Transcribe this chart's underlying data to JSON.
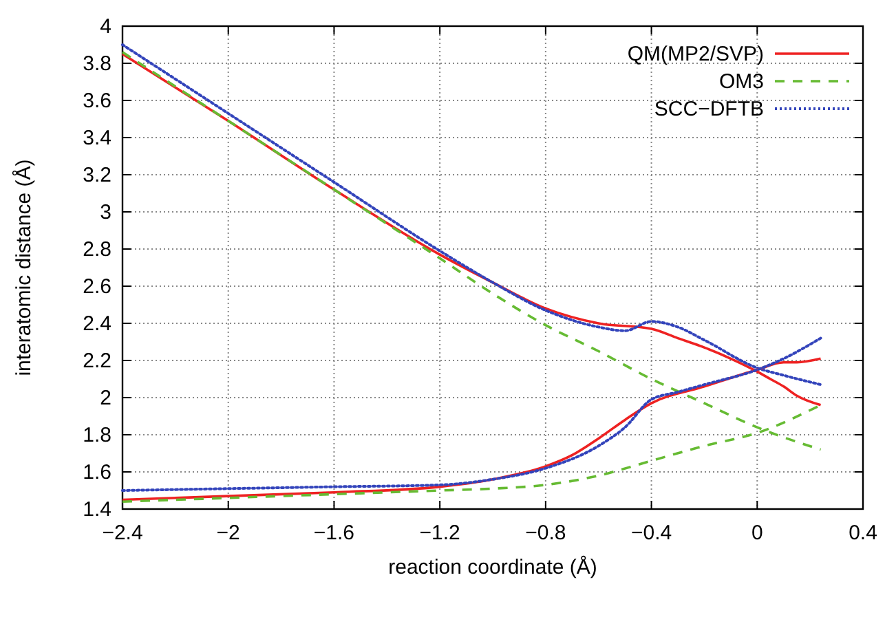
{
  "chart_data": {
    "type": "line",
    "xlabel": "reaction coordinate (Å)",
    "ylabel": "interatomic distance (Å)",
    "xlim": [
      -2.4,
      0.4
    ],
    "xticks": [
      {
        "value": -2.4,
        "label": "−2.4"
      },
      {
        "value": -2,
        "label": "−2"
      },
      {
        "value": -1.6,
        "label": "−1.6"
      },
      {
        "value": -1.2,
        "label": "−1.2"
      },
      {
        "value": -0.8,
        "label": "−0.8"
      },
      {
        "value": -0.4,
        "label": "−0.4"
      },
      0,
      0.4
    ],
    "ylim": [
      1.4,
      4
    ],
    "yticks": [
      1.4,
      1.6,
      1.8,
      2,
      2.2,
      2.4,
      2.6,
      2.8,
      3,
      3.2,
      3.4,
      3.6,
      3.8,
      4
    ],
    "grid": true,
    "legend": "top right",
    "marker": "none",
    "series": [
      {
        "name": "QM(MP2/SVP)",
        "color": "#ee2222",
        "line_style": "solid",
        "x": [
          -2.4,
          -2.0,
          -1.6,
          -1.2,
          -1.0,
          -0.8,
          -0.6,
          -0.4,
          -0.3,
          -0.2,
          -0.1,
          0,
          0.05,
          0.1,
          0.15,
          0.24
        ],
        "values": [
          3.85,
          3.49,
          3.12,
          2.77,
          2.62,
          2.48,
          2.4,
          2.37,
          2.32,
          2.27,
          2.21,
          2.14,
          2.1,
          2.06,
          2.01,
          1.96
        ]
      },
      {
        "name": "OM3",
        "color": "#66bb33",
        "line_style": "dashed",
        "x": [
          -2.4,
          -2.0,
          -1.6,
          -1.2,
          -1.0,
          -0.8,
          -0.6,
          -0.4,
          -0.2,
          0,
          0.24
        ],
        "values": [
          3.86,
          3.49,
          3.12,
          2.75,
          2.56,
          2.39,
          2.25,
          2.1,
          1.97,
          1.84,
          1.72
        ]
      },
      {
        "name": "SCC−DFTB",
        "color": "#3344bb",
        "line_style": "dotted",
        "x": [
          -2.4,
          -2.0,
          -1.6,
          -1.2,
          -1.0,
          -0.8,
          -0.6,
          -0.5,
          -0.4,
          -0.3,
          -0.2,
          0,
          0.1,
          0.24
        ],
        "values": [
          3.9,
          3.53,
          3.16,
          2.79,
          2.62,
          2.47,
          2.38,
          2.36,
          2.41,
          2.38,
          2.31,
          2.16,
          2.12,
          2.07
        ]
      },
      {
        "color": "#ee2222",
        "line_style": "solid",
        "x": [
          -2.4,
          -2.0,
          -1.6,
          -1.2,
          -1.0,
          -0.8,
          -0.7,
          -0.6,
          -0.5,
          -0.4,
          -0.2,
          0,
          0.1,
          0.15,
          0.24
        ],
        "values": [
          1.45,
          1.47,
          1.49,
          1.52,
          1.56,
          1.63,
          1.69,
          1.78,
          1.88,
          1.97,
          2.06,
          2.15,
          2.19,
          2.19,
          2.21
        ]
      },
      {
        "color": "#66bb33",
        "line_style": "dashed",
        "x": [
          -2.4,
          -2.0,
          -1.6,
          -1.2,
          -1.0,
          -0.8,
          -0.6,
          -0.4,
          -0.2,
          0,
          0.24
        ],
        "values": [
          1.44,
          1.46,
          1.48,
          1.5,
          1.51,
          1.53,
          1.58,
          1.66,
          1.74,
          1.81,
          1.96
        ]
      },
      {
        "color": "#3344bb",
        "line_style": "dotted",
        "x": [
          -2.4,
          -2.0,
          -1.6,
          -1.2,
          -1.0,
          -0.8,
          -0.6,
          -0.5,
          -0.4,
          -0.3,
          -0.2,
          0,
          0.1,
          0.24
        ],
        "values": [
          1.5,
          1.51,
          1.52,
          1.53,
          1.56,
          1.62,
          1.74,
          1.84,
          1.99,
          2.03,
          2.07,
          2.15,
          2.21,
          2.32
        ]
      }
    ]
  }
}
